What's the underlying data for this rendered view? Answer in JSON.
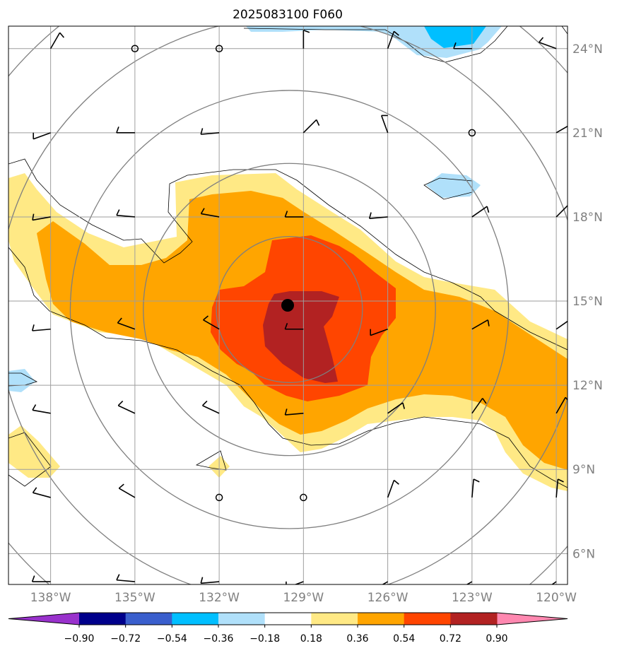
{
  "chart_data": {
    "type": "map",
    "title": "2025083100 F060",
    "lon_ticks": [
      {
        "value": -138,
        "label": "138°W"
      },
      {
        "value": -135,
        "label": "135°W"
      },
      {
        "value": -132,
        "label": "132°W"
      },
      {
        "value": -129,
        "label": "129°W"
      },
      {
        "value": -126,
        "label": "126°W"
      },
      {
        "value": -123,
        "label": "123°W"
      },
      {
        "value": -120,
        "label": "120°W"
      }
    ],
    "lat_ticks": [
      {
        "value": 6,
        "label": "6°N"
      },
      {
        "value": 9,
        "label": "9°N"
      },
      {
        "value": 12,
        "label": "12°N"
      },
      {
        "value": 15,
        "label": "15°N"
      },
      {
        "value": 18,
        "label": "18°N"
      },
      {
        "value": 21,
        "label": "21°N"
      },
      {
        "value": 24,
        "label": "24°N"
      }
    ],
    "lon_range": [
      -139.5,
      -119.6
    ],
    "lat_range": [
      4.9,
      24.8
    ],
    "grid": true,
    "center": {
      "lon": -129.5,
      "lat": 14.7
    },
    "colorbar": {
      "ticks": [
        "−0.90",
        "−0.72",
        "−0.54",
        "−0.36",
        "−0.18",
        "0.18",
        "0.36",
        "0.54",
        "0.72",
        "0.90"
      ],
      "colors": [
        "#9932cc",
        "#00008b",
        "#3a5fcd",
        "#00bfff",
        "#b0e0fa",
        "#ffffff",
        "#ffe985",
        "#ffa500",
        "#ff4500",
        "#b22222",
        "#ff88b0"
      ],
      "extend": "both"
    },
    "range_rings_deg": [
      2.5,
      5,
      7.5,
      10,
      12.5
    ],
    "wind_barbs": [
      {
        "lon": -138,
        "lat": 24,
        "type": "barb",
        "dir": 30
      },
      {
        "lon": -135,
        "lat": 24,
        "type": "calm"
      },
      {
        "lon": -132,
        "lat": 24,
        "type": "calm"
      },
      {
        "lon": -129,
        "lat": 24,
        "type": "barb",
        "dir": 0
      },
      {
        "lon": -126,
        "lat": 24,
        "type": "barb",
        "dir": 20
      },
      {
        "lon": -123,
        "lat": 24,
        "type": "barb",
        "dir": 270
      },
      {
        "lon": -120,
        "lat": 24,
        "type": "barb",
        "dir": 290
      },
      {
        "lon": -138,
        "lat": 21,
        "type": "barb",
        "dir": 250
      },
      {
        "lon": -135,
        "lat": 21,
        "type": "barb",
        "dir": 270
      },
      {
        "lon": -132,
        "lat": 21,
        "type": "barb",
        "dir": 265
      },
      {
        "lon": -129,
        "lat": 21,
        "type": "barb",
        "dir": 45
      },
      {
        "lon": -126,
        "lat": 21,
        "type": "barb",
        "dir": 340
      },
      {
        "lon": -123,
        "lat": 21,
        "type": "calm"
      },
      {
        "lon": -120,
        "lat": 21,
        "type": "barb",
        "dir": 60
      },
      {
        "lon": -138,
        "lat": 18,
        "type": "barb",
        "dir": 260
      },
      {
        "lon": -135,
        "lat": 18,
        "type": "barb",
        "dir": 275
      },
      {
        "lon": -132,
        "lat": 18,
        "type": "barb",
        "dir": 280
      },
      {
        "lon": -129,
        "lat": 18,
        "type": "barb",
        "dir": 270
      },
      {
        "lon": -126,
        "lat": 18,
        "type": "barb",
        "dir": 265
      },
      {
        "lon": -123,
        "lat": 18,
        "type": "barb",
        "dir": 55
      },
      {
        "lon": -120,
        "lat": 18,
        "type": "barb",
        "dir": 45
      },
      {
        "lon": -138,
        "lat": 14,
        "type": "barb",
        "dir": 265
      },
      {
        "lon": -135,
        "lat": 14,
        "type": "barb",
        "dir": 290
      },
      {
        "lon": -132,
        "lat": 14,
        "type": "barb",
        "dir": 300
      },
      {
        "lon": -129,
        "lat": 14,
        "type": "barb",
        "dir": 270
      },
      {
        "lon": -126,
        "lat": 14,
        "type": "barb",
        "dir": 250
      },
      {
        "lon": -123,
        "lat": 14,
        "type": "barb",
        "dir": 60
      },
      {
        "lon": -120,
        "lat": 14,
        "type": "barb",
        "dir": 55
      },
      {
        "lon": -138,
        "lat": 11,
        "type": "barb",
        "dir": 280
      },
      {
        "lon": -135,
        "lat": 11,
        "type": "barb",
        "dir": 295
      },
      {
        "lon": -132,
        "lat": 11,
        "type": "barb",
        "dir": 295
      },
      {
        "lon": -129,
        "lat": 11,
        "type": "barb",
        "dir": 265
      },
      {
        "lon": -126,
        "lat": 11,
        "type": "barb",
        "dir": 55
      },
      {
        "lon": -123,
        "lat": 11,
        "type": "barb",
        "dir": 35
      },
      {
        "lon": -120,
        "lat": 11,
        "type": "barb",
        "dir": 30
      },
      {
        "lon": -138,
        "lat": 8,
        "type": "barb",
        "dir": 285
      },
      {
        "lon": -135,
        "lat": 8,
        "type": "barb",
        "dir": 300
      },
      {
        "lon": -132,
        "lat": 8,
        "type": "calm"
      },
      {
        "lon": -129,
        "lat": 8,
        "type": "calm"
      },
      {
        "lon": -126,
        "lat": 8,
        "type": "barb",
        "dir": 20
      },
      {
        "lon": -123,
        "lat": 8,
        "type": "barb",
        "dir": 5
      },
      {
        "lon": -120,
        "lat": 8,
        "type": "barb",
        "dir": 5
      },
      {
        "lon": -138,
        "lat": 5,
        "type": "barb",
        "dir": 270
      },
      {
        "lon": -135,
        "lat": 5,
        "type": "barb",
        "dir": 275
      },
      {
        "lon": -132,
        "lat": 5,
        "type": "barb",
        "dir": 265
      },
      {
        "lon": -129,
        "lat": 5,
        "type": "barb",
        "dir": 250
      },
      {
        "lon": -126,
        "lat": 5,
        "type": "barb",
        "dir": 240
      },
      {
        "lon": -123,
        "lat": 5,
        "type": "barb",
        "dir": 240
      },
      {
        "lon": -120,
        "lat": 5,
        "type": "barb",
        "dir": 235
      }
    ]
  }
}
